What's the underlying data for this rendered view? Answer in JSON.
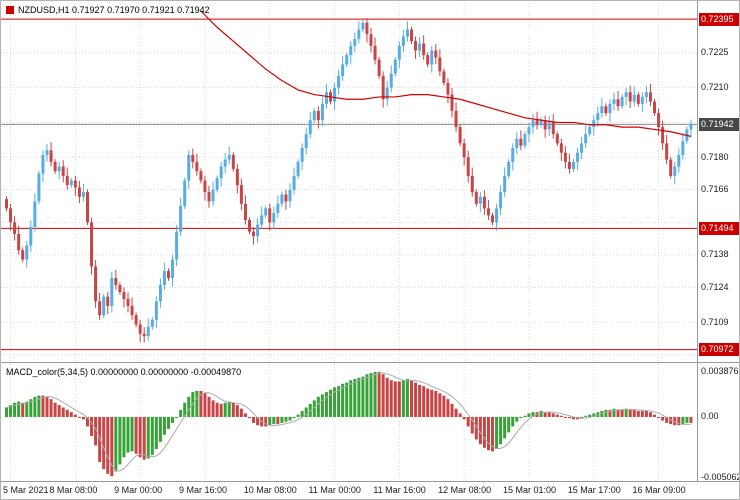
{
  "window": {
    "title_symbol": "NZDUSD,H1",
    "title_ohlc": "0.71927 0.71970 0.71921 0.71942"
  },
  "colors": {
    "candle_up": "#56ade4",
    "candle_down": "#c94444",
    "macd_up": "#36a336",
    "macd_down": "#c94444",
    "ma_line": "#d40000",
    "level_line": "#d40000",
    "bid_line": "#8a8a8a",
    "grid": "#dcdcdc",
    "separator": "#9a9a9a",
    "signal_line": "#ababab",
    "tag_red_bg": "#cc0000",
    "tag_bid_bg": "#474747"
  },
  "chart_data": {
    "type": "candlestick",
    "symbol": "NZDUSD",
    "timeframe": "H1",
    "current_bar": {
      "open": "0.71927",
      "high": "0.71970",
      "low": "0.71921",
      "close": "0.71942"
    },
    "pip_factor": 0.0001,
    "price_axis": {
      "max_pips": 7243,
      "min_pips": 7094,
      "ticks": [
        {
          "p": 7225,
          "label": "0.7225"
        },
        {
          "p": 7210,
          "label": "0.7210"
        },
        {
          "p": 7195,
          "label": null
        },
        {
          "p": 7180,
          "label": "0.7180"
        },
        {
          "p": 7166,
          "label": "0.7166"
        },
        {
          "p": 7152,
          "label": null
        },
        {
          "p": 7138,
          "label": "0.7138"
        },
        {
          "p": 7124,
          "label": "0.7124"
        },
        {
          "p": 7109,
          "label": "0.7109"
        },
        {
          "p": 7095,
          "label": null
        }
      ]
    },
    "time_axis": {
      "ticks": [
        {
          "i": 1,
          "label": "5 Mar 2021"
        },
        {
          "i": 17,
          "label": "8 Mar 08:00"
        },
        {
          "i": 33,
          "label": "9 Mar 00:00"
        },
        {
          "i": 49,
          "label": "9 Mar 16:00"
        },
        {
          "i": 65,
          "label": "10 Mar 08:00"
        },
        {
          "i": 81,
          "label": "11 Mar 00:00"
        },
        {
          "i": 97,
          "label": "11 Mar 16:00"
        },
        {
          "i": 113,
          "label": "12 Mar 08:00"
        },
        {
          "i": 129,
          "label": "15 Mar 01:00"
        },
        {
          "i": 145,
          "label": "15 Mar 17:00"
        },
        {
          "i": 161,
          "label": "16 Mar 09:00"
        }
      ]
    },
    "levels": [
      {
        "p": 7239.5,
        "label": "0.72395",
        "kind": "line"
      },
      {
        "p": 7194.2,
        "label": "0.71942",
        "kind": "bid"
      },
      {
        "p": 7149.4,
        "label": "0.71494",
        "kind": "line"
      },
      {
        "p": 7097.2,
        "label": "0.70972",
        "kind": "line"
      }
    ],
    "first_open_pips": 7162,
    "closes_pips": [
      7158,
      7152,
      7147,
      7140,
      7136,
      7142,
      7150,
      7161,
      7173,
      7181,
      7183,
      7178,
      7174,
      7176,
      7172,
      7168,
      7170,
      7167,
      7163,
      7165,
      7152,
      7133,
      7118,
      7112,
      7120,
      7116,
      7128,
      7125,
      7122,
      7119,
      7116,
      7112,
      7108,
      7104,
      7103,
      7107,
      7110,
      7118,
      7125,
      7131,
      7128,
      7136,
      7148,
      7159,
      7170,
      7181,
      7178,
      7174,
      7170,
      7165,
      7161,
      7166,
      7171,
      7176,
      7179,
      7181,
      7175,
      7168,
      7160,
      7153,
      7148,
      7146,
      7151,
      7155,
      7158,
      7152,
      7156,
      7160,
      7164,
      7161,
      7166,
      7172,
      7178,
      7184,
      7190,
      7196,
      7200,
      7196,
      7203,
      7208,
      7204,
      7210,
      7215,
      7220,
      7224,
      7228,
      7231,
      7235,
      7238,
      7233,
      7228,
      7222,
      7215,
      7205,
      7210,
      7216,
      7222,
      7228,
      7232,
      7235,
      7230,
      7226,
      7229,
      7224,
      7220,
      7226,
      7223,
      7217,
      7212,
      7207,
      7200,
      7193,
      7186,
      7180,
      7172,
      7165,
      7160,
      7163,
      7158,
      7155,
      7152,
      7158,
      7165,
      7172,
      7178,
      7184,
      7188,
      7185,
      7190,
      7193,
      7196,
      7194,
      7196,
      7192,
      7195,
      7190,
      7186,
      7182,
      7178,
      7175,
      7178,
      7182,
      7186,
      7190,
      7193,
      7196,
      7199,
      7202,
      7199,
      7203,
      7205,
      7202,
      7206,
      7208,
      7204,
      7207,
      7203,
      7206,
      7208,
      7204,
      7199,
      7193,
      7186,
      7179,
      7172,
      7176,
      7181,
      7187,
      7192,
      7194.2
    ],
    "ma": {
      "label": "moving-average-red",
      "points": [
        [
          48,
          7243
        ],
        [
          52,
          7236
        ],
        [
          56,
          7230
        ],
        [
          60,
          7224
        ],
        [
          64,
          7218
        ],
        [
          68,
          7213
        ],
        [
          72,
          7209
        ],
        [
          76,
          7207
        ],
        [
          80,
          7206
        ],
        [
          84,
          7205
        ],
        [
          88,
          7205
        ],
        [
          92,
          7206
        ],
        [
          96,
          7206
        ],
        [
          100,
          7207
        ],
        [
          104,
          7207
        ],
        [
          108,
          7206
        ],
        [
          112,
          7205
        ],
        [
          116,
          7203
        ],
        [
          120,
          7201
        ],
        [
          124,
          7199
        ],
        [
          128,
          7197
        ],
        [
          132,
          7196
        ],
        [
          136,
          7195
        ],
        [
          140,
          7195
        ],
        [
          144,
          7194
        ],
        [
          148,
          7194
        ],
        [
          152,
          7193
        ],
        [
          156,
          7193
        ],
        [
          160,
          7192
        ],
        [
          164,
          7191
        ],
        [
          169,
          7189
        ]
      ]
    },
    "macd": {
      "label": "MACD_color(5,34,5)",
      "values_text": "0.00000000 0.00000000 -0.00049870",
      "unit": 0.0001,
      "scale_max": 0.0038761,
      "scale_min": -0.0050623,
      "scale_labels": [
        {
          "label": "0.0038761",
          "v": 0.0038761
        },
        {
          "label": "0.00",
          "v": 0
        },
        {
          "label": "-0.0050623",
          "v": -0.0050623
        }
      ],
      "values": [
        8,
        10,
        12,
        13,
        12,
        13,
        15,
        17,
        18,
        18,
        17,
        15,
        12,
        10,
        8,
        6,
        4,
        2,
        0,
        -2,
        -8,
        -16,
        -24,
        -38,
        -44,
        -48,
        -50,
        -46,
        -40,
        -34,
        -30,
        -29,
        -31,
        -34,
        -36,
        -35,
        -32,
        -27,
        -21,
        -15,
        -10,
        -5,
        0,
        6,
        12,
        17,
        21,
        22,
        22,
        20,
        17,
        14,
        12,
        11,
        12,
        13,
        12,
        10,
        7,
        3,
        -1,
        -5,
        -7,
        -8,
        -8,
        -7,
        -6,
        -6,
        -5,
        -4,
        -3,
        -1,
        2,
        5,
        8,
        11,
        14,
        17,
        19,
        21,
        23,
        25,
        26,
        28,
        29,
        31,
        32,
        33,
        34,
        36,
        37,
        38,
        38,
        36,
        33,
        31,
        30,
        30,
        31,
        32,
        31,
        29,
        27,
        26,
        24,
        23,
        22,
        20,
        18,
        15,
        11,
        7,
        3,
        -2,
        -8,
        -14,
        -19,
        -23,
        -26,
        -28,
        -29,
        -27,
        -23,
        -18,
        -13,
        -8,
        -4,
        -1,
        1,
        3,
        4,
        4,
        5,
        4,
        4,
        3,
        2,
        1,
        0,
        -1,
        -2,
        -2,
        -1,
        1,
        2,
        3,
        4,
        5,
        6,
        6,
        7,
        6,
        6,
        7,
        6,
        6,
        5,
        5,
        5,
        4,
        2,
        0,
        -3,
        -5,
        -6,
        -7,
        -7,
        -6,
        -5,
        -5
      ]
    }
  }
}
